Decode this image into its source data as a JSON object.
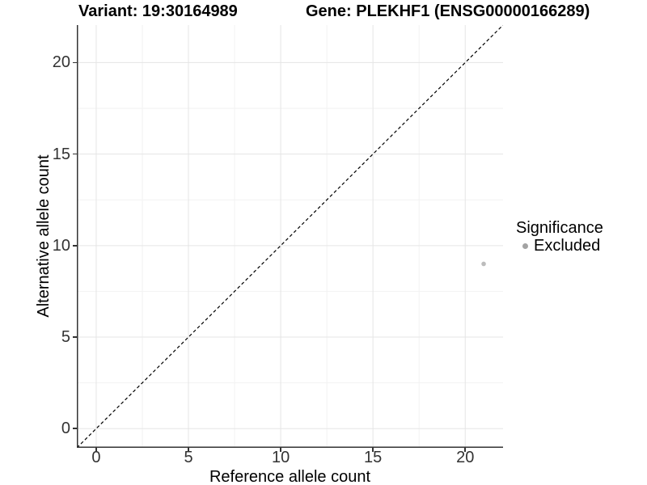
{
  "titles": {
    "variant": "Variant: 19:30164989",
    "gene": "Gene: PLEKHF1 (ENSG00000166289)"
  },
  "chart_data": {
    "type": "scatter",
    "xlabel": "Reference allele count",
    "ylabel": "Alternative allele count",
    "xlim": [
      -1.05,
      22.05
    ],
    "ylim": [
      -1.05,
      22.05
    ],
    "xticks": [
      0,
      5,
      10,
      15,
      20
    ],
    "yticks": [
      0,
      5,
      10,
      15,
      20
    ],
    "minor_xticks": [
      2.5,
      7.5,
      12.5,
      17.5
    ],
    "minor_yticks": [
      2.5,
      7.5,
      12.5,
      17.5
    ],
    "grid": "on",
    "identity_line": {
      "style": "dashed",
      "from": -1.05,
      "to": 22.05,
      "color": "#000000"
    },
    "points": [
      {
        "x": 21,
        "y": 9,
        "significance": "Excluded",
        "color": "#bcbcbc",
        "radius": 2.8
      }
    ],
    "legend": {
      "title": "Significance",
      "position": "right",
      "items": [
        {
          "label": "Excluded",
          "marker": "circle",
          "color": "#a3a3a3"
        }
      ]
    },
    "colors": {
      "axis_line": "#333333",
      "tick_text": "#333333",
      "grid_major": "#e5e5e5",
      "grid_minor": "#f2f2f2",
      "background": "#ffffff"
    }
  }
}
